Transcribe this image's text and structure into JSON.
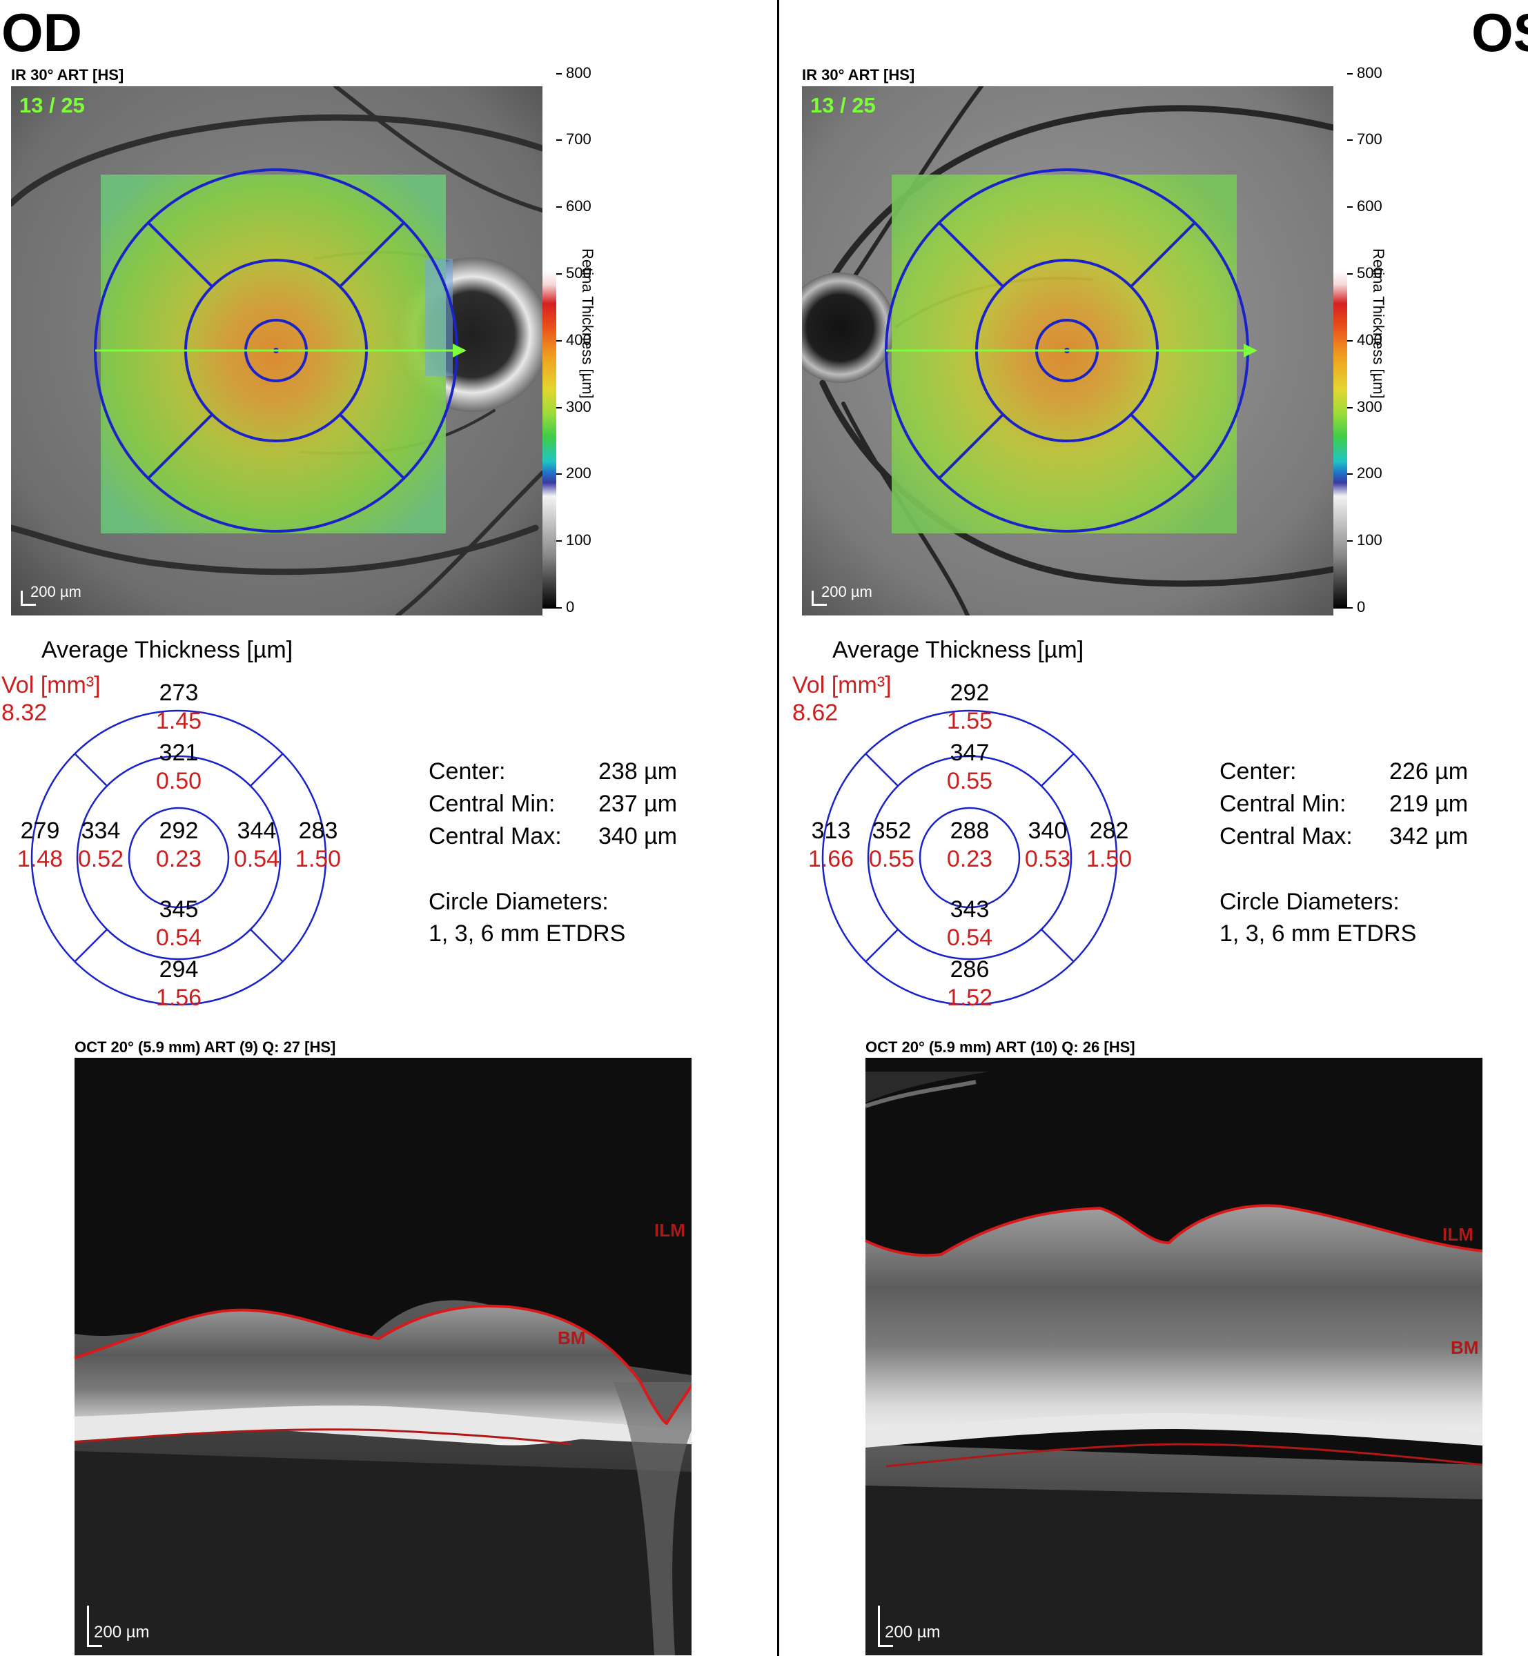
{
  "eyes": {
    "od": "OD",
    "os": "OS"
  },
  "od": {
    "ir_title": "IR 30° ART [HS]",
    "scan_counter": "13 / 25",
    "fundus_scale": "200 µm",
    "colorbar": {
      "ticks": [
        "800",
        "700",
        "600",
        "500",
        "400",
        "300",
        "200",
        "100",
        "0"
      ],
      "title": "Retina Thickness [µm]"
    },
    "avg_title": "Average Thickness [µm]",
    "vol_label": "Vol [mm³]",
    "vol_total": "8.32",
    "etdrs": {
      "outer_superior": {
        "thk": "273",
        "vol": "1.45"
      },
      "inner_superior": {
        "thk": "321",
        "vol": "0.50"
      },
      "outer_temporal": {
        "thk": "279",
        "vol": "1.48"
      },
      "inner_temporal": {
        "thk": "334",
        "vol": "0.52"
      },
      "center": {
        "thk": "292",
        "vol": "0.23"
      },
      "inner_nasal": {
        "thk": "344",
        "vol": "0.54"
      },
      "outer_nasal": {
        "thk": "283",
        "vol": "1.50"
      },
      "inner_inferior": {
        "thk": "345",
        "vol": "0.54"
      },
      "outer_inferior": {
        "thk": "294",
        "vol": "1.56"
      }
    },
    "stats": [
      {
        "label": "Center:",
        "value": "238 µm"
      },
      {
        "label": "Central Min:",
        "value": "237 µm"
      },
      {
        "label": "Central Max:",
        "value": "340 µm"
      }
    ],
    "circle_title": "Circle Diameters:",
    "circle_value": "1, 3, 6 mm ETDRS",
    "oct_title": "OCT 20° (5.9 mm) ART (9) Q: 27 [HS]",
    "ilm": "ILM",
    "bm": "BM",
    "oct_scale": "200 µm"
  },
  "os": {
    "ir_title": "IR 30° ART [HS]",
    "scan_counter": "13 / 25",
    "fundus_scale": "200 µm",
    "colorbar": {
      "ticks": [
        "800",
        "700",
        "600",
        "500",
        "400",
        "300",
        "200",
        "100",
        "0"
      ],
      "title": "Retina Thickness [µm]"
    },
    "avg_title": "Average Thickness [µm]",
    "vol_label": "Vol [mm³]",
    "vol_total": "8.62",
    "etdrs": {
      "outer_superior": {
        "thk": "292",
        "vol": "1.55"
      },
      "inner_superior": {
        "thk": "347",
        "vol": "0.55"
      },
      "outer_temporal": {
        "thk": "313",
        "vol": "1.66"
      },
      "inner_temporal": {
        "thk": "352",
        "vol": "0.55"
      },
      "center": {
        "thk": "288",
        "vol": "0.23"
      },
      "inner_nasal": {
        "thk": "340",
        "vol": "0.53"
      },
      "outer_nasal": {
        "thk": "282",
        "vol": "1.50"
      },
      "inner_inferior": {
        "thk": "343",
        "vol": "0.54"
      },
      "outer_inferior": {
        "thk": "286",
        "vol": "1.52"
      }
    },
    "stats": [
      {
        "label": "Center:",
        "value": "226 µm"
      },
      {
        "label": "Central Min:",
        "value": "219 µm"
      },
      {
        "label": "Central Max:",
        "value": "342 µm"
      }
    ],
    "circle_title": "Circle Diameters:",
    "circle_value": "1, 3, 6 mm ETDRS",
    "oct_title": "OCT 20° (5.9 mm) ART (10) Q: 26 [HS]",
    "ilm": "ILM",
    "bm": "BM",
    "oct_scale": "200 µm"
  },
  "colors": {
    "grid_blue": "#1a22c8",
    "scan_arrow": "#7dff3a",
    "volume_red": "#cc1f1f",
    "segmentation_red": "#d81a1a"
  }
}
